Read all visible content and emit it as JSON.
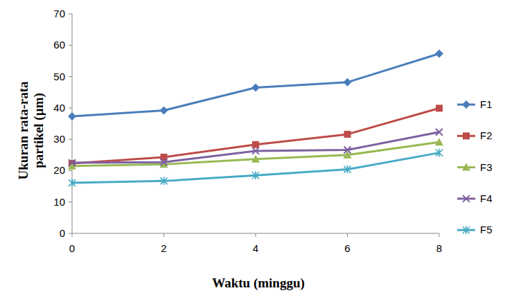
{
  "chart_data": {
    "type": "line",
    "x_label": "Waktu (minggu)",
    "y_label": "Ukuran rata-rata partikel (µm)",
    "x": [
      0,
      2,
      4,
      6,
      8
    ],
    "xlim": [
      0,
      8
    ],
    "xticks": [
      0,
      2,
      4,
      6,
      8
    ],
    "ylim": [
      0,
      70
    ],
    "yticks": [
      0,
      10,
      20,
      30,
      40,
      50,
      60,
      70
    ],
    "grid": false,
    "legend": "right",
    "series": [
      {
        "name": "F1",
        "color": "#4a7ebb",
        "marker": "diamond",
        "values": [
          37.3,
          39.2,
          46.5,
          48.2,
          57.3
        ]
      },
      {
        "name": "F2",
        "color": "#be4b48",
        "marker": "square",
        "values": [
          22.3,
          24.3,
          28.3,
          31.6,
          39.9
        ]
      },
      {
        "name": "F3",
        "color": "#98b954",
        "marker": "triangle",
        "values": [
          21.5,
          22.0,
          23.7,
          25.0,
          29.1
        ]
      },
      {
        "name": "F4",
        "color": "#7d60a0",
        "marker": "x",
        "values": [
          22.5,
          22.7,
          26.3,
          26.6,
          32.3
        ]
      },
      {
        "name": "F5",
        "color": "#46aac5",
        "marker": "asterisk",
        "values": [
          16.1,
          16.7,
          18.5,
          20.4,
          25.7
        ]
      }
    ]
  }
}
